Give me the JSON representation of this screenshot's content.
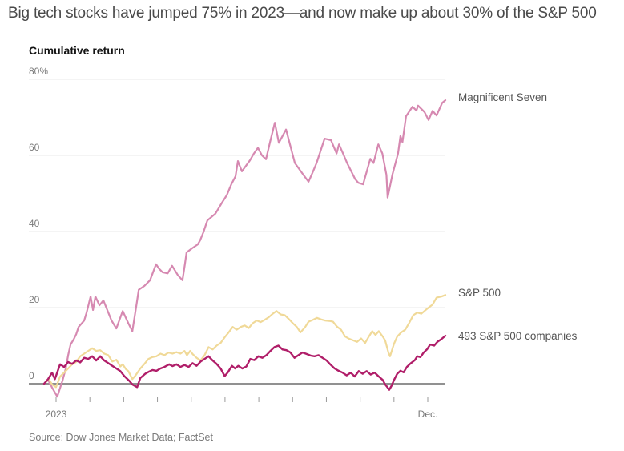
{
  "header": {
    "title": "Big tech stocks have jumped 75% in 2023—and now make up about 30% of the S&P 500"
  },
  "chart": {
    "subtitle": "Cumulative return",
    "source": "Source: Dow Jones Market Data; FactSet"
  },
  "chart_data": {
    "type": "line",
    "title": "Big tech stocks have jumped 75% in 2023—and now make up about 30% of the S&P 500",
    "ylabel": "Cumulative return",
    "unit": "percent",
    "ylim": [
      -6,
      80
    ],
    "grid": "horizontal",
    "legend_position": "right-of-line-ends",
    "colors": {
      "grid_line": "#e8e8e8",
      "zero_line": "#919191",
      "tick_mark": "#9a9a9a",
      "axis_text": "#7a7a7a"
    },
    "y_ticks": [
      {
        "value": 80,
        "label": "80%"
      },
      {
        "value": 60,
        "label": "60"
      },
      {
        "value": 40,
        "label": "40"
      },
      {
        "value": 20,
        "label": "20"
      },
      {
        "value": 0,
        "label": "0"
      }
    ],
    "x_axis": {
      "year": "2023",
      "start_label": "2023",
      "end_label": "Dec.",
      "tick_count": 12
    },
    "series": [
      {
        "name": "Magnificent Seven",
        "color": "#d689b1",
        "stroke_width": 2.2,
        "final_value_pct": 74.5,
        "points": [
          [
            0,
            0
          ],
          [
            0.01,
            1
          ],
          [
            0.02,
            -1
          ],
          [
            0.033,
            -3.4
          ],
          [
            0.046,
            0.8
          ],
          [
            0.054,
            4
          ],
          [
            0.06,
            7.5
          ],
          [
            0.066,
            10.3
          ],
          [
            0.074,
            11.7
          ],
          [
            0.08,
            13
          ],
          [
            0.086,
            14.9
          ],
          [
            0.1,
            16.6
          ],
          [
            0.106,
            18.7
          ],
          [
            0.116,
            22.9
          ],
          [
            0.122,
            19.4
          ],
          [
            0.128,
            22.9
          ],
          [
            0.138,
            20.6
          ],
          [
            0.148,
            21.9
          ],
          [
            0.168,
            16.6
          ],
          [
            0.18,
            14.5
          ],
          [
            0.196,
            19.1
          ],
          [
            0.21,
            15.9
          ],
          [
            0.22,
            13.8
          ],
          [
            0.23,
            20.5
          ],
          [
            0.236,
            24.7
          ],
          [
            0.25,
            25.7
          ],
          [
            0.264,
            27.2
          ],
          [
            0.279,
            31.4
          ],
          [
            0.286,
            30.3
          ],
          [
            0.295,
            29.3
          ],
          [
            0.308,
            29
          ],
          [
            0.319,
            31
          ],
          [
            0.333,
            28.6
          ],
          [
            0.345,
            27.2
          ],
          [
            0.351,
            31.5
          ],
          [
            0.355,
            34.5
          ],
          [
            0.369,
            35.6
          ],
          [
            0.383,
            36.6
          ],
          [
            0.389,
            37.7
          ],
          [
            0.397,
            39.8
          ],
          [
            0.407,
            42.9
          ],
          [
            0.427,
            44.7
          ],
          [
            0.443,
            47.5
          ],
          [
            0.455,
            49.5
          ],
          [
            0.467,
            52.5
          ],
          [
            0.477,
            54.5
          ],
          [
            0.483,
            58.5
          ],
          [
            0.493,
            55.8
          ],
          [
            0.513,
            58.7
          ],
          [
            0.523,
            60.5
          ],
          [
            0.533,
            62
          ],
          [
            0.543,
            60
          ],
          [
            0.553,
            59
          ],
          [
            0.563,
            63.5
          ],
          [
            0.575,
            68.6
          ],
          [
            0.585,
            63.3
          ],
          [
            0.603,
            66.8
          ],
          [
            0.625,
            58
          ],
          [
            0.649,
            54.5
          ],
          [
            0.659,
            53.1
          ],
          [
            0.669,
            55.5
          ],
          [
            0.679,
            58
          ],
          [
            0.699,
            64.4
          ],
          [
            0.715,
            64
          ],
          [
            0.729,
            60.5
          ],
          [
            0.735,
            62.9
          ],
          [
            0.745,
            60.5
          ],
          [
            0.755,
            58
          ],
          [
            0.775,
            53.8
          ],
          [
            0.783,
            52.8
          ],
          [
            0.795,
            52.4
          ],
          [
            0.813,
            59.1
          ],
          [
            0.821,
            58
          ],
          [
            0.833,
            62.9
          ],
          [
            0.843,
            60.5
          ],
          [
            0.853,
            54.9
          ],
          [
            0.856,
            48.9
          ],
          [
            0.868,
            55
          ],
          [
            0.882,
            60.5
          ],
          [
            0.888,
            65.1
          ],
          [
            0.893,
            63.5
          ],
          [
            0.902,
            70.3
          ],
          [
            0.918,
            72.8
          ],
          [
            0.928,
            71.8
          ],
          [
            0.932,
            73.1
          ],
          [
            0.948,
            71.4
          ],
          [
            0.958,
            69.3
          ],
          [
            0.968,
            71.7
          ],
          [
            0.978,
            70.5
          ],
          [
            0.992,
            73.8
          ],
          [
            1,
            74.5
          ]
        ]
      },
      {
        "name": "S&P 500",
        "color": "#f0d998",
        "stroke_width": 2.2,
        "final_value_pct": 23.3,
        "points": [
          [
            0,
            0
          ],
          [
            0.012,
            1.2
          ],
          [
            0.02,
            -0.2
          ],
          [
            0.03,
            -0.9
          ],
          [
            0.04,
            1.9
          ],
          [
            0.05,
            2.9
          ],
          [
            0.06,
            4
          ],
          [
            0.07,
            5.1
          ],
          [
            0.08,
            5.7
          ],
          [
            0.09,
            7.2
          ],
          [
            0.1,
            7.9
          ],
          [
            0.11,
            8.6
          ],
          [
            0.12,
            9.3
          ],
          [
            0.13,
            8.6
          ],
          [
            0.14,
            8.8
          ],
          [
            0.15,
            7.9
          ],
          [
            0.16,
            7.5
          ],
          [
            0.17,
            5.8
          ],
          [
            0.18,
            6.3
          ],
          [
            0.19,
            4.5
          ],
          [
            0.196,
            5.1
          ],
          [
            0.204,
            3.8
          ],
          [
            0.21,
            3.3
          ],
          [
            0.22,
            1.2
          ],
          [
            0.228,
            2.2
          ],
          [
            0.24,
            4
          ],
          [
            0.25,
            5.2
          ],
          [
            0.26,
            6.5
          ],
          [
            0.27,
            7
          ],
          [
            0.28,
            7.2
          ],
          [
            0.29,
            7.9
          ],
          [
            0.3,
            7.5
          ],
          [
            0.31,
            8.2
          ],
          [
            0.32,
            7.9
          ],
          [
            0.33,
            8.3
          ],
          [
            0.34,
            7.9
          ],
          [
            0.35,
            8.6
          ],
          [
            0.356,
            7.5
          ],
          [
            0.364,
            8.6
          ],
          [
            0.37,
            7.8
          ],
          [
            0.38,
            6.8
          ],
          [
            0.39,
            6.1
          ],
          [
            0.4,
            7.5
          ],
          [
            0.41,
            9.6
          ],
          [
            0.42,
            9
          ],
          [
            0.43,
            10
          ],
          [
            0.44,
            10.7
          ],
          [
            0.45,
            12.2
          ],
          [
            0.46,
            13.5
          ],
          [
            0.47,
            14.9
          ],
          [
            0.48,
            14.2
          ],
          [
            0.49,
            14.9
          ],
          [
            0.5,
            15.3
          ],
          [
            0.51,
            14.6
          ],
          [
            0.52,
            15.9
          ],
          [
            0.53,
            16.6
          ],
          [
            0.54,
            16.2
          ],
          [
            0.55,
            16.8
          ],
          [
            0.56,
            17.5
          ],
          [
            0.57,
            18.4
          ],
          [
            0.579,
            19.1
          ],
          [
            0.59,
            18.2
          ],
          [
            0.6,
            18
          ],
          [
            0.61,
            17
          ],
          [
            0.62,
            15.9
          ],
          [
            0.63,
            14.9
          ],
          [
            0.639,
            13.5
          ],
          [
            0.65,
            14.8
          ],
          [
            0.659,
            16.3
          ],
          [
            0.67,
            16.8
          ],
          [
            0.68,
            17.3
          ],
          [
            0.69,
            16.9
          ],
          [
            0.7,
            16.6
          ],
          [
            0.71,
            16.5
          ],
          [
            0.72,
            16.3
          ],
          [
            0.73,
            15
          ],
          [
            0.74,
            14.2
          ],
          [
            0.75,
            12.4
          ],
          [
            0.76,
            11.8
          ],
          [
            0.77,
            11.4
          ],
          [
            0.78,
            11
          ],
          [
            0.79,
            11.9
          ],
          [
            0.8,
            10.7
          ],
          [
            0.81,
            12.5
          ],
          [
            0.818,
            13.8
          ],
          [
            0.826,
            12.8
          ],
          [
            0.834,
            13.8
          ],
          [
            0.844,
            12.4
          ],
          [
            0.85,
            11.4
          ],
          [
            0.858,
            8.2
          ],
          [
            0.862,
            7.2
          ],
          [
            0.872,
            10.5
          ],
          [
            0.88,
            12.4
          ],
          [
            0.89,
            13.5
          ],
          [
            0.9,
            14.2
          ],
          [
            0.91,
            16
          ],
          [
            0.92,
            18
          ],
          [
            0.93,
            18.7
          ],
          [
            0.94,
            18.4
          ],
          [
            0.95,
            19.3
          ],
          [
            0.958,
            20
          ],
          [
            0.968,
            20.8
          ],
          [
            0.978,
            22.6
          ],
          [
            0.99,
            22.9
          ],
          [
            1,
            23.3
          ]
        ]
      },
      {
        "name": "493 S&P 500 companies",
        "color": "#b01e69",
        "stroke_width": 2.4,
        "final_value_pct": 12.6,
        "points": [
          [
            0,
            0
          ],
          [
            0.01,
            1.2
          ],
          [
            0.02,
            2.9
          ],
          [
            0.027,
            1.2
          ],
          [
            0.04,
            5.1
          ],
          [
            0.05,
            4.4
          ],
          [
            0.06,
            5.7
          ],
          [
            0.07,
            5.2
          ],
          [
            0.08,
            6.1
          ],
          [
            0.09,
            5.6
          ],
          [
            0.1,
            6.8
          ],
          [
            0.11,
            6.5
          ],
          [
            0.12,
            7.2
          ],
          [
            0.13,
            6.1
          ],
          [
            0.14,
            7.2
          ],
          [
            0.15,
            6.1
          ],
          [
            0.16,
            5.4
          ],
          [
            0.17,
            4.7
          ],
          [
            0.18,
            4
          ],
          [
            0.19,
            3.3
          ],
          [
            0.2,
            2
          ],
          [
            0.212,
            0.8
          ],
          [
            0.22,
            -0.2
          ],
          [
            0.232,
            -0.9
          ],
          [
            0.24,
            1.5
          ],
          [
            0.252,
            2.6
          ],
          [
            0.262,
            3.2
          ],
          [
            0.27,
            3.6
          ],
          [
            0.28,
            3.4
          ],
          [
            0.29,
            4
          ],
          [
            0.3,
            4.4
          ],
          [
            0.312,
            5.1
          ],
          [
            0.32,
            4.6
          ],
          [
            0.33,
            5.1
          ],
          [
            0.34,
            4.4
          ],
          [
            0.35,
            4.9
          ],
          [
            0.36,
            4.4
          ],
          [
            0.37,
            5.4
          ],
          [
            0.38,
            4.7
          ],
          [
            0.39,
            5.8
          ],
          [
            0.4,
            6.5
          ],
          [
            0.41,
            7.2
          ],
          [
            0.42,
            6.1
          ],
          [
            0.43,
            5.2
          ],
          [
            0.44,
            4
          ],
          [
            0.45,
            2
          ],
          [
            0.458,
            3
          ],
          [
            0.468,
            4.7
          ],
          [
            0.476,
            4
          ],
          [
            0.484,
            4.7
          ],
          [
            0.494,
            4
          ],
          [
            0.504,
            4.5
          ],
          [
            0.514,
            6.5
          ],
          [
            0.524,
            6.2
          ],
          [
            0.534,
            7.2
          ],
          [
            0.544,
            6.8
          ],
          [
            0.554,
            7.5
          ],
          [
            0.564,
            8.6
          ],
          [
            0.574,
            9.6
          ],
          [
            0.584,
            10
          ],
          [
            0.594,
            9
          ],
          [
            0.604,
            8.8
          ],
          [
            0.614,
            8.2
          ],
          [
            0.624,
            6.8
          ],
          [
            0.634,
            7.5
          ],
          [
            0.644,
            8.2
          ],
          [
            0.654,
            7.8
          ],
          [
            0.664,
            7.4
          ],
          [
            0.674,
            7.2
          ],
          [
            0.684,
            7.5
          ],
          [
            0.694,
            6.8
          ],
          [
            0.704,
            6.1
          ],
          [
            0.714,
            5
          ],
          [
            0.724,
            4
          ],
          [
            0.734,
            3.4
          ],
          [
            0.744,
            2.9
          ],
          [
            0.754,
            2.2
          ],
          [
            0.764,
            2.9
          ],
          [
            0.774,
            1.9
          ],
          [
            0.784,
            3.3
          ],
          [
            0.794,
            2.6
          ],
          [
            0.804,
            3.3
          ],
          [
            0.814,
            2.4
          ],
          [
            0.824,
            2.9
          ],
          [
            0.834,
            1.9
          ],
          [
            0.844,
            1
          ],
          [
            0.85,
            -0.2
          ],
          [
            0.856,
            -1
          ],
          [
            0.86,
            -1.6
          ],
          [
            0.866,
            -0.5
          ],
          [
            0.872,
            1
          ],
          [
            0.88,
            2.6
          ],
          [
            0.888,
            3.4
          ],
          [
            0.896,
            3
          ],
          [
            0.904,
            4.4
          ],
          [
            0.914,
            5.4
          ],
          [
            0.924,
            6.2
          ],
          [
            0.93,
            7.2
          ],
          [
            0.938,
            7
          ],
          [
            0.946,
            8.2
          ],
          [
            0.954,
            9
          ],
          [
            0.962,
            10.3
          ],
          [
            0.972,
            10
          ],
          [
            0.98,
            11
          ],
          [
            0.99,
            11.7
          ],
          [
            1,
            12.6
          ]
        ]
      }
    ]
  }
}
